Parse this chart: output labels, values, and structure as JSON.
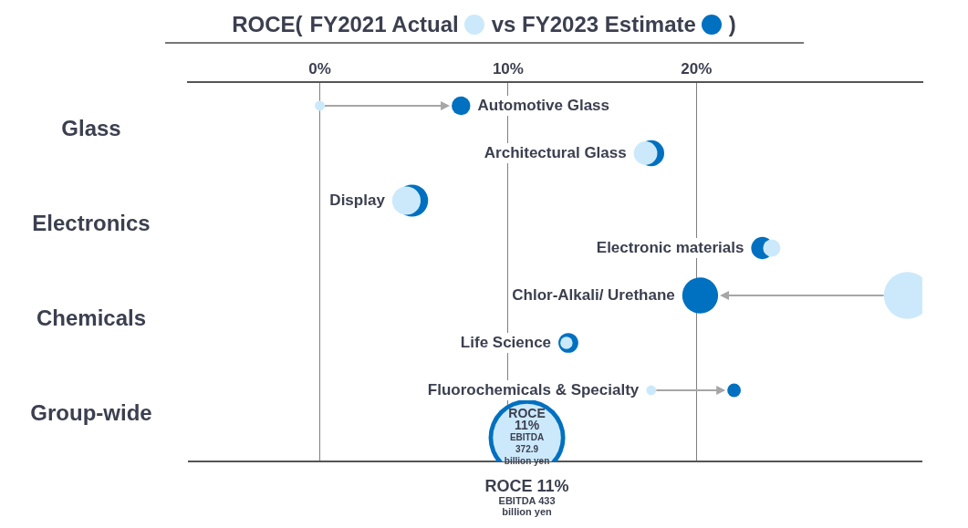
{
  "chart_data": {
    "type": "bubble",
    "orientation": "horizontal",
    "legend_title": "ROCE(",
    "legend": "top",
    "tick_labels": "x",
    "grid": "x",
    "categories": [
      "Automotive Glass",
      "Architectural Glass",
      "Display",
      "Electronic materials",
      "Chlor-Alkali/ Urethane",
      "Life Science",
      "Fluorochemicals & Specialty",
      null
    ],
    "xlim": [
      -7,
      32
    ],
    "xticks": [
      {
        "value": 0,
        "label": "0%"
      },
      {
        "value": 10,
        "label": "10%"
      },
      {
        "value": 20,
        "label": "20%"
      }
    ],
    "series": [
      {
        "name": "FY2021  Actual",
        "color": "#cce9fb",
        "values": [
          0,
          17.3,
          4.6,
          24,
          31.2,
          13.1,
          17.6,
          11
        ],
        "sizes": [
          0.017,
          0.094,
          0.138,
          0.051,
          0.376,
          0.026,
          0.017,
          0.787
        ],
        "value_labels": [
          null,
          null,
          null,
          null,
          null,
          null,
          null,
          "ROCE\n11%\nEBITDA\n372.9\nbillion yen"
        ]
      },
      {
        "name": "vs FY2023  Estimate",
        "color": "#0070c0",
        "values": [
          7.5,
          17.6,
          4.9,
          23.5,
          20.2,
          13.2,
          22,
          11
        ],
        "sizes": [
          0.059,
          0.115,
          0.176,
          0.084,
          0.219,
          0.067,
          0.031,
          1
        ],
        "value_labels": [
          null,
          null,
          null,
          null,
          null,
          null,
          null,
          "ROCE 11%\nEBITDA 433\nbillion yen"
        ]
      }
    ],
    "annotations": [
      ")",
      "Glass",
      "Electronics",
      "Chemicals",
      "Group-wide"
    ]
  }
}
